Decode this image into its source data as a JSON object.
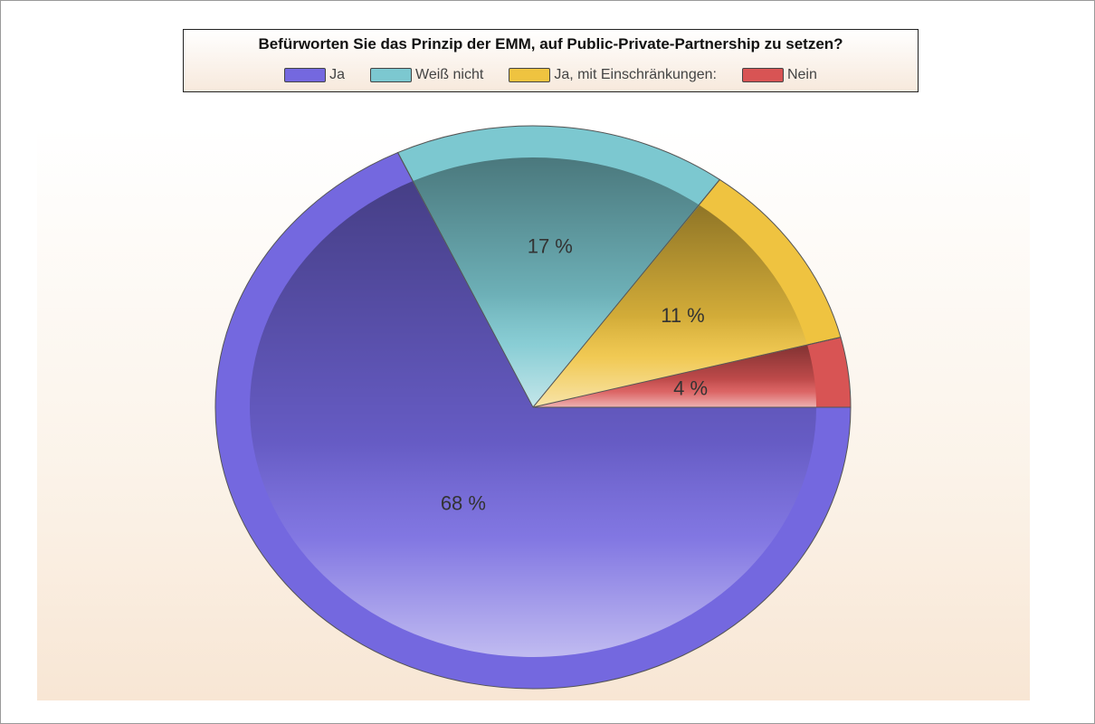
{
  "chart_data": {
    "type": "pie",
    "title": "Befürworten Sie das Prinzip der EMM, auf Public-Private-Partnership zu setzen?",
    "legend_placement": "top",
    "slices": [
      {
        "name": "Ja",
        "value": 68,
        "label": "68 %",
        "color": "#7468df"
      },
      {
        "name": "Weiß nicht",
        "value": 17,
        "label": "17 %",
        "color": "#7cc8d0"
      },
      {
        "name": "Ja, mit Einschränkungen:",
        "value": 11,
        "label": "11 %",
        "color": "#efc340"
      },
      {
        "name": "Nein",
        "value": 4,
        "label": "4 %",
        "color": "#d85454"
      }
    ]
  }
}
